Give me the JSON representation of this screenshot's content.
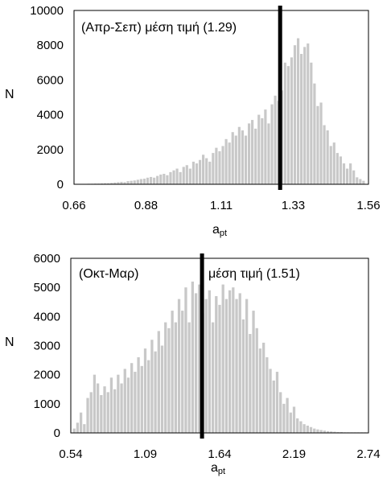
{
  "chart_data": [
    {
      "type": "bar",
      "annotation_period": "(Απρ-Σεπ) μέση τιμή (1.29)",
      "annotation_mean": "",
      "ylabel": "N",
      "xlabel_main": "a",
      "xlabel_sub": "pt",
      "xlim": [
        0.66,
        1.56
      ],
      "ylim": [
        0,
        10000
      ],
      "xticks": [
        "0.66",
        "0.88",
        "1.11",
        "1.33",
        "1.56"
      ],
      "yticks": [
        "0",
        "2000",
        "4000",
        "6000",
        "8000",
        "10000"
      ],
      "mean_value": 1.29,
      "bar_color": "#c8c8c8",
      "bin_centers": [
        0.685,
        0.695,
        0.705,
        0.715,
        0.725,
        0.735,
        0.745,
        0.755,
        0.765,
        0.775,
        0.785,
        0.795,
        0.805,
        0.815,
        0.825,
        0.835,
        0.845,
        0.855,
        0.865,
        0.875,
        0.885,
        0.895,
        0.905,
        0.915,
        0.925,
        0.935,
        0.945,
        0.955,
        0.965,
        0.975,
        0.985,
        0.995,
        1.005,
        1.015,
        1.025,
        1.035,
        1.045,
        1.055,
        1.065,
        1.075,
        1.085,
        1.095,
        1.105,
        1.115,
        1.125,
        1.135,
        1.145,
        1.155,
        1.165,
        1.175,
        1.185,
        1.195,
        1.205,
        1.215,
        1.225,
        1.235,
        1.245,
        1.255,
        1.265,
        1.275,
        1.285,
        1.295,
        1.305,
        1.315,
        1.325,
        1.335,
        1.345,
        1.355,
        1.365,
        1.375,
        1.385,
        1.395,
        1.405,
        1.415,
        1.425,
        1.435,
        1.445,
        1.455,
        1.465,
        1.475,
        1.485,
        1.495,
        1.505,
        1.515,
        1.525,
        1.535,
        1.545
      ],
      "values": [
        20,
        20,
        30,
        30,
        40,
        40,
        50,
        60,
        60,
        80,
        100,
        120,
        140,
        120,
        180,
        200,
        220,
        260,
        300,
        320,
        380,
        420,
        380,
        480,
        560,
        600,
        520,
        700,
        800,
        900,
        700,
        1000,
        1100,
        900,
        1300,
        1200,
        1400,
        1700,
        1500,
        1300,
        1800,
        2100,
        1900,
        2200,
        2600,
        2400,
        3000,
        2800,
        3300,
        3100,
        2800,
        3500,
        3700,
        3200,
        4000,
        3800,
        4300,
        3500,
        4600,
        5100,
        4800,
        5400,
        7000,
        6800,
        7300,
        8000,
        8400,
        7500,
        7900,
        8100,
        7000,
        5800,
        4500,
        4700,
        3400,
        3100,
        2200,
        2400,
        1800,
        1600,
        1200,
        900,
        1200,
        800,
        400,
        300,
        200
      ]
    },
    {
      "type": "bar",
      "annotation_period": "(Οκτ-Μαρ)",
      "annotation_mean": "μέση τιμή (1.51)",
      "ylabel": "N",
      "xlabel_main": "a",
      "xlabel_sub": "pt",
      "xlim": [
        0.54,
        2.74
      ],
      "ylim": [
        0,
        6000
      ],
      "xticks": [
        "0.54",
        "1.09",
        "1.64",
        "2.19",
        "2.74"
      ],
      "yticks": [
        "0",
        "1000",
        "2000",
        "3000",
        "4000",
        "5000",
        "6000"
      ],
      "mean_value": 1.51,
      "bar_color": "#c8c8c8",
      "bin_centers": [
        0.565,
        0.59,
        0.615,
        0.64,
        0.665,
        0.69,
        0.715,
        0.74,
        0.765,
        0.79,
        0.815,
        0.84,
        0.865,
        0.89,
        0.915,
        0.94,
        0.965,
        0.99,
        1.015,
        1.04,
        1.065,
        1.09,
        1.115,
        1.14,
        1.165,
        1.19,
        1.215,
        1.24,
        1.265,
        1.29,
        1.315,
        1.34,
        1.365,
        1.39,
        1.415,
        1.44,
        1.465,
        1.49,
        1.515,
        1.54,
        1.565,
        1.59,
        1.615,
        1.64,
        1.665,
        1.69,
        1.715,
        1.74,
        1.765,
        1.79,
        1.815,
        1.84,
        1.865,
        1.89,
        1.915,
        1.94,
        1.965,
        1.99,
        2.015,
        2.04,
        2.065,
        2.09,
        2.115,
        2.14,
        2.165,
        2.19,
        2.215,
        2.24,
        2.265,
        2.29,
        2.315,
        2.34,
        2.365,
        2.39,
        2.415,
        2.44,
        2.465,
        2.49,
        2.515,
        2.54,
        2.565,
        2.59,
        2.615,
        2.64,
        2.665,
        2.69,
        2.715
      ],
      "values": [
        150,
        350,
        700,
        300,
        1200,
        1400,
        2000,
        1700,
        1300,
        1600,
        1400,
        1900,
        1500,
        2000,
        1700,
        2200,
        1900,
        2400,
        2100,
        2600,
        2300,
        2900,
        2500,
        3200,
        2800,
        3500,
        3000,
        3800,
        3600,
        4200,
        3800,
        4600,
        4200,
        5000,
        3800,
        5200,
        4800,
        5100,
        4100,
        4600,
        4900,
        3800,
        4700,
        4400,
        5100,
        4600,
        4900,
        5000,
        4600,
        4800,
        3900,
        4600,
        3400,
        4200,
        3600,
        2900,
        3100,
        2600,
        2200,
        1800,
        2100,
        1400,
        1000,
        1200,
        700,
        900,
        500,
        400,
        300,
        250,
        200,
        150,
        120,
        100,
        80,
        60,
        50,
        40,
        30,
        30,
        20,
        20,
        20,
        20,
        20,
        20,
        20
      ]
    }
  ]
}
